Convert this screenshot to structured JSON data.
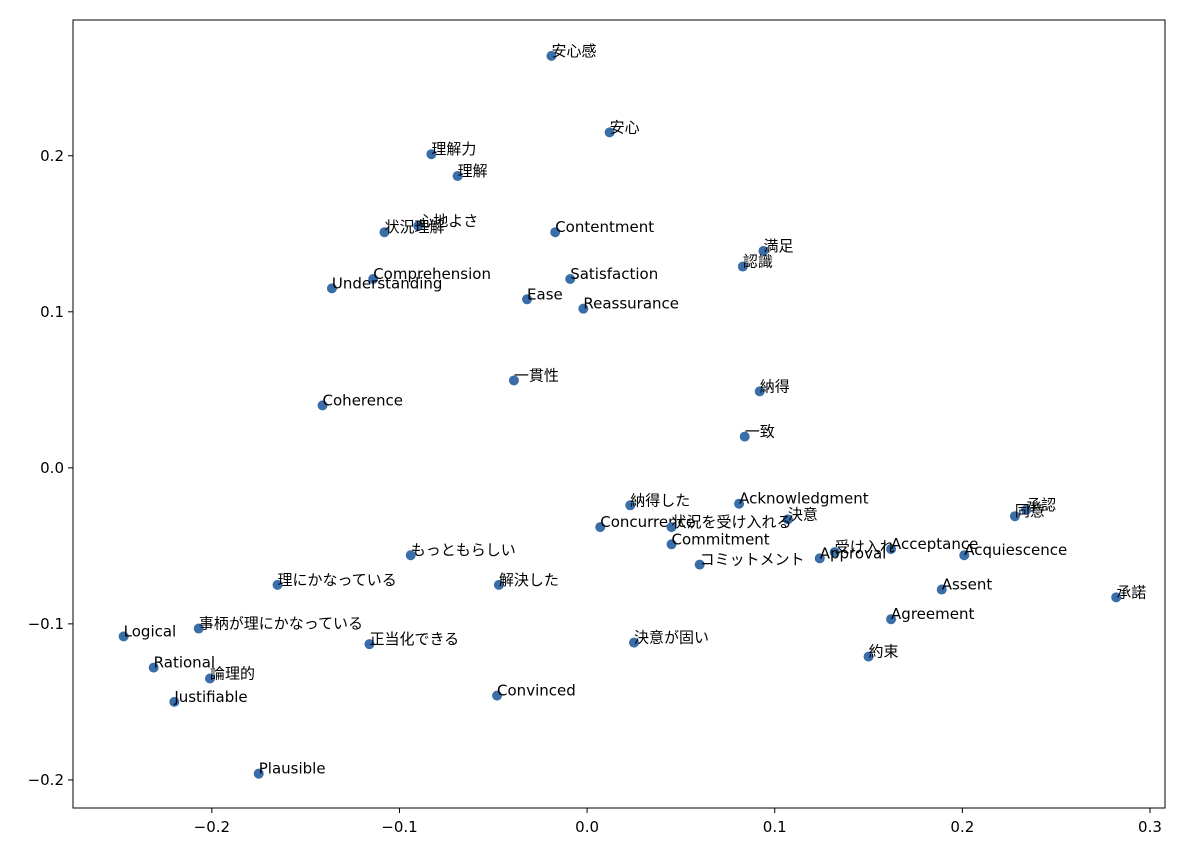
{
  "chart_data": {
    "type": "scatter",
    "color": "#3a6ea8",
    "x": [
      -0.019,
      0.012,
      -0.083,
      -0.069,
      -0.09,
      -0.108,
      -0.017,
      0.094,
      0.083,
      -0.114,
      -0.136,
      -0.009,
      -0.032,
      -0.002,
      -0.039,
      0.092,
      -0.141,
      0.084,
      0.023,
      0.081,
      0.107,
      0.234,
      0.228,
      0.007,
      0.045,
      0.045,
      0.162,
      0.132,
      0.201,
      -0.094,
      0.124,
      0.06,
      -0.165,
      -0.047,
      0.189,
      0.282,
      0.162,
      -0.207,
      -0.247,
      -0.116,
      0.025,
      0.15,
      -0.231,
      -0.201,
      -0.048,
      -0.22,
      -0.175
    ],
    "values": [
      0.264,
      0.215,
      0.201,
      0.187,
      0.155,
      0.151,
      0.151,
      0.139,
      0.129,
      0.121,
      0.115,
      0.121,
      0.108,
      0.102,
      0.056,
      0.049,
      0.04,
      0.02,
      -0.024,
      -0.023,
      -0.033,
      -0.027,
      -0.031,
      -0.038,
      -0.038,
      -0.049,
      -0.052,
      -0.054,
      -0.056,
      -0.056,
      -0.058,
      -0.062,
      -0.075,
      -0.075,
      -0.078,
      -0.083,
      -0.097,
      -0.103,
      -0.108,
      -0.113,
      -0.112,
      -0.121,
      -0.128,
      -0.135,
      -0.146,
      -0.15,
      -0.196
    ],
    "labels": [
      "安心感",
      "安心",
      "理解力",
      "理解",
      "心地よさ",
      "状況理解",
      "Contentment",
      "満足",
      "認識",
      "Comprehension",
      "Understanding",
      "Satisfaction",
      "Ease",
      "Reassurance",
      "一貫性",
      "納得",
      "Coherence",
      "一致",
      "納得した",
      "Acknowledgment",
      "決意",
      "承認",
      "同意",
      "Concurrence",
      "状況を受け入れる",
      "Commitment",
      "Acceptance",
      "受け入れ",
      "Acquiescence",
      "もっともらしい",
      "Approval",
      "コミットメント",
      "理にかなっている",
      "解決した",
      "Assent",
      "承諾",
      "Agreement",
      "事柄が理にかなっている",
      "Logical",
      "正当化できる",
      "決意が固い",
      "約束",
      "Rational",
      "論理的",
      "Convinced",
      "Justifiable",
      "Plausible"
    ],
    "xlim": [
      -0.274,
      0.308
    ],
    "ylim": [
      -0.218,
      0.287
    ],
    "xticks": [
      {
        "value": -0.2,
        "label": "−0.2"
      },
      {
        "value": -0.1,
        "label": "−0.1"
      },
      {
        "value": 0,
        "label": "0.0"
      },
      0.1,
      0.2,
      0.3
    ],
    "yticks": [
      {
        "value": -0.2,
        "label": "−0.2"
      },
      {
        "value": -0.1,
        "label": "−0.1"
      },
      {
        "value": 0,
        "label": "0.0"
      },
      0.1,
      0.2
    ]
  }
}
